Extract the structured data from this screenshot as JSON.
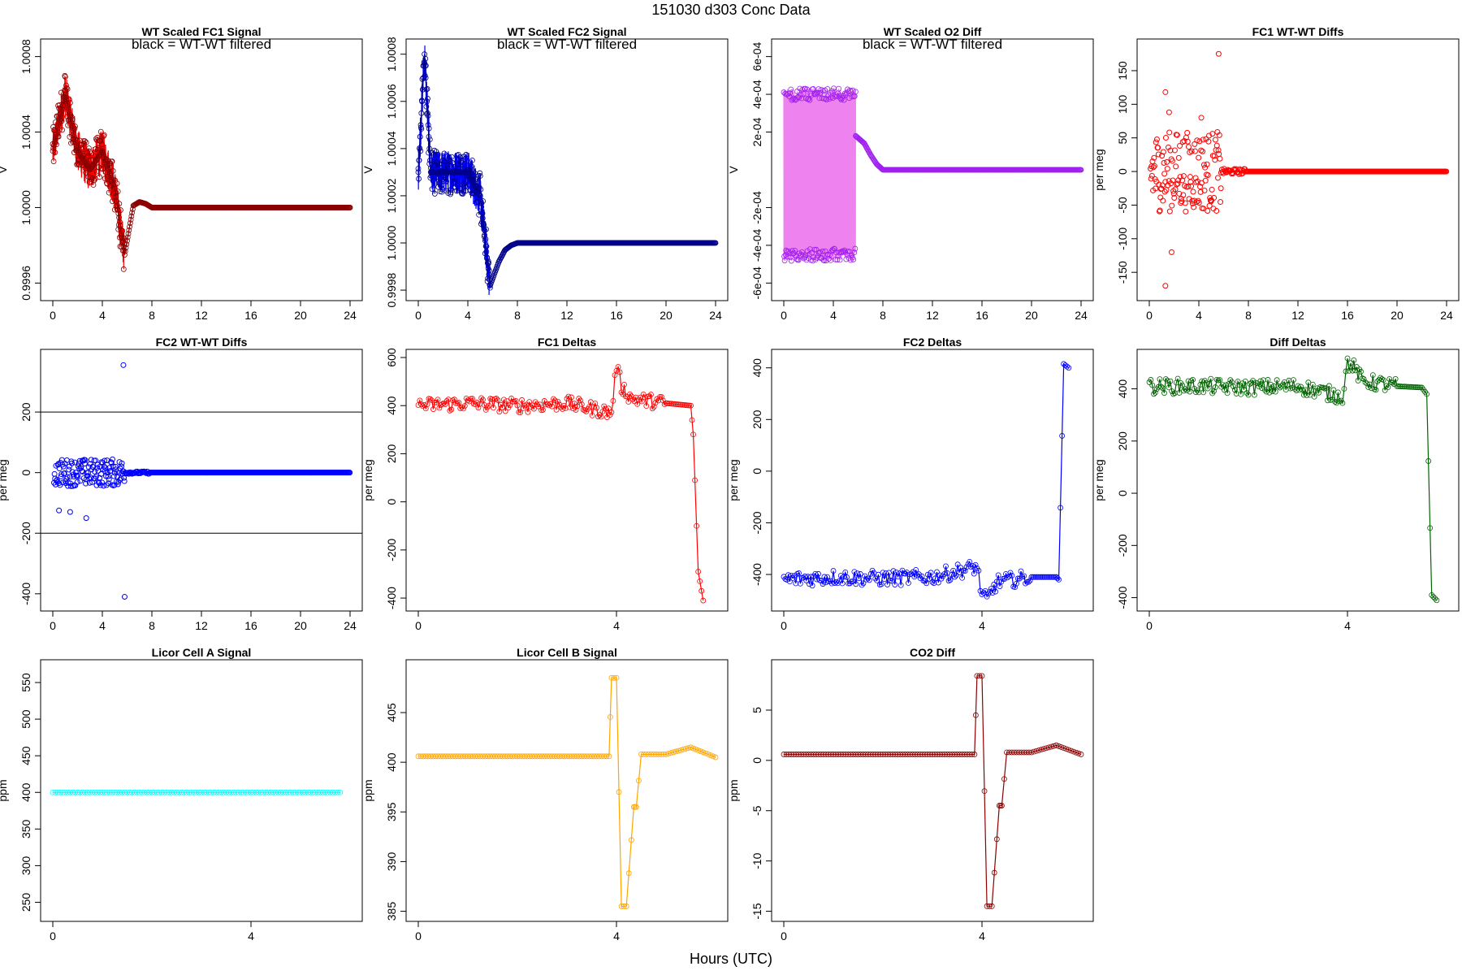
{
  "page": {
    "title": "151030    d303    Conc Data",
    "xlabel": "Hours (UTC)"
  },
  "chart_data": [
    {
      "id": "fc1-signal",
      "type": "line",
      "title": "WT Scaled FC1 Signal",
      "annotation": "black = WT-WT filtered",
      "ylabel": "V",
      "xlim": [
        0,
        24
      ],
      "ylim": [
        0.99955,
        1.00085
      ],
      "xticks": [
        0,
        4,
        8,
        12,
        16,
        20,
        24
      ],
      "yticks": [
        0.9996,
        1.0,
        1.0004,
        1.0008
      ],
      "ytick_labels": [
        "0.9996",
        "1.0000",
        "1.0004",
        "1.0008"
      ],
      "color": "#ff0000",
      "series": [
        {
          "color": "#8b0000",
          "x": [
            0,
            1,
            2,
            3,
            4,
            5,
            5.8,
            6.5,
            7,
            7.5,
            8,
            12,
            16,
            20,
            24
          ],
          "y": [
            1.0003,
            1.0006,
            1.0003,
            1.0002,
            1.0003,
            1.0001,
            0.99975,
            1.00001,
            1.00003,
            1.00002,
            1.0,
            1.0,
            1.0,
            1.0,
            1.0
          ]
        }
      ]
    },
    {
      "id": "fc2-signal",
      "type": "line",
      "title": "WT Scaled FC2 Signal",
      "annotation": "black = WT-WT filtered",
      "ylabel": "V",
      "xlim": [
        0,
        24
      ],
      "ylim": [
        0.99979,
        1.00083
      ],
      "xticks": [
        0,
        4,
        8,
        12,
        16,
        20,
        24
      ],
      "yticks": [
        0.9998,
        1.0,
        1.0002,
        1.0004,
        1.0006,
        1.0008
      ],
      "ytick_labels": [
        "0.9998",
        "1.0000",
        "1.0002",
        "1.0004",
        "1.0006",
        "1.0008"
      ],
      "color": "#0000ff",
      "series": [
        {
          "color": "#00008b",
          "x": [
            0,
            0.5,
            1,
            2,
            3,
            4,
            5,
            5.8,
            6.5,
            7,
            7.5,
            8,
            12,
            16,
            20,
            24
          ],
          "y": [
            1.0003,
            1.0008,
            1.0003,
            1.0003,
            1.0003,
            1.0003,
            1.0002,
            0.99982,
            0.99992,
            0.99997,
            0.99999,
            1.0,
            1.0,
            1.0,
            1.0,
            1.0
          ]
        }
      ]
    },
    {
      "id": "o2-diff",
      "type": "line",
      "title": "WT Scaled O2 Diff",
      "annotation": "black = WT-WT filtered",
      "ylabel": "V",
      "xlim": [
        0,
        24
      ],
      "ylim": [
        -0.00065,
        0.00065
      ],
      "xticks": [
        0,
        4,
        8,
        12,
        16,
        20,
        24
      ],
      "yticks": [
        -0.0006,
        -0.0004,
        -0.0002,
        0.0002,
        0.0004,
        0.0006
      ],
      "ytick_labels": [
        "-6e-04",
        "-4e-04",
        "-2e-04",
        "2e-04",
        "4e-04",
        "6e-04"
      ],
      "color": "#ee82ee",
      "series": [
        {
          "color": "#a020f0",
          "x": [
            5.8,
            6.5,
            7,
            7.5,
            8,
            12,
            16,
            20,
            24
          ],
          "y": [
            0.00018,
            0.00014,
            8e-05,
            3e-05,
            0.0,
            0.0,
            0.0,
            0.0,
            0.0
          ]
        }
      ]
    },
    {
      "id": "fc1-wtwt",
      "type": "scatter",
      "title": "FC1 WT-WT Diffs",
      "ylabel": "per meg",
      "xlim": [
        0,
        24
      ],
      "ylim": [
        -180,
        185
      ],
      "xticks": [
        0,
        4,
        8,
        12,
        16,
        20,
        24
      ],
      "yticks": [
        -150,
        -100,
        -50,
        0,
        50,
        100,
        150
      ],
      "ytick_labels": [
        "-150",
        "-100",
        "-50",
        "0",
        "50",
        "100",
        "150"
      ],
      "color": "#ff0000",
      "series": [
        {
          "color": "#ff0000",
          "x": [
            1.3,
            5.6,
            1.3,
            1.8,
            1.6,
            4.2
          ],
          "y": [
            -170,
            175,
            118,
            -120,
            88,
            80
          ]
        }
      ]
    },
    {
      "id": "fc2-wtwt",
      "type": "scatter",
      "title": "FC2 WT-WT Diffs",
      "ylabel": "per meg",
      "xlim": [
        0,
        24
      ],
      "ylim": [
        -430,
        380
      ],
      "xticks": [
        0,
        4,
        8,
        12,
        16,
        20,
        24
      ],
      "yticks": [
        -400,
        -200,
        0,
        200
      ],
      "ytick_labels": [
        "-400",
        "-200",
        "0",
        "200"
      ],
      "hlines": [
        200,
        -200
      ],
      "color": "#0000ff",
      "series": [
        {
          "color": "#0000ff",
          "x": [
            5.7,
            5.8,
            2.7,
            0.5,
            1.4
          ],
          "y": [
            355,
            -410,
            -150,
            -125,
            -130
          ]
        }
      ]
    },
    {
      "id": "fc1-deltas",
      "type": "line",
      "title": "FC1 Deltas",
      "ylabel": "per meg",
      "xlim": [
        0,
        6.0
      ],
      "ylim": [
        -420,
        600
      ],
      "xticks": [
        0,
        4
      ],
      "yticks": [
        -400,
        -200,
        0,
        200,
        400,
        600
      ],
      "ytick_labels": [
        "-400",
        "-200",
        "0",
        "200",
        "400",
        "600"
      ],
      "color": "#ff0000",
      "series": [
        {
          "color": "#ff0000",
          "x": [
            0,
            1,
            2,
            3,
            3.9,
            4.0,
            4.1,
            4.3,
            5,
            5.5,
            5.55,
            5.65,
            5.75
          ],
          "y": [
            400,
            410,
            400,
            410,
            370,
            570,
            480,
            430,
            410,
            400,
            280,
            -290,
            -410
          ]
        }
      ]
    },
    {
      "id": "fc2-deltas",
      "type": "line",
      "title": "FC2 Deltas",
      "ylabel": "per meg",
      "xlim": [
        0,
        6.0
      ],
      "ylim": [
        -510,
        440
      ],
      "xticks": [
        0,
        4
      ],
      "yticks": [
        -400,
        -200,
        0,
        200,
        400
      ],
      "ytick_labels": [
        "-400",
        "-200",
        "0",
        "200",
        "400"
      ],
      "color": "#0000ff",
      "series": [
        {
          "color": "#0000ff",
          "x": [
            0,
            1,
            2,
            3,
            3.9,
            4.0,
            4.1,
            4.3,
            5,
            5.5,
            5.55,
            5.65,
            5.75
          ],
          "y": [
            -420,
            -410,
            -415,
            -410,
            -370,
            -480,
            -500,
            -430,
            -410,
            -410,
            -420,
            415,
            400
          ]
        }
      ]
    },
    {
      "id": "diff-deltas",
      "type": "line",
      "title": "Diff Deltas",
      "ylabel": "per meg",
      "xlim": [
        0,
        6.0
      ],
      "ylim": [
        -420,
        520
      ],
      "xticks": [
        0,
        4
      ],
      "yticks": [
        -400,
        -200,
        0,
        200,
        400
      ],
      "ytick_labels": [
        "-400",
        "-200",
        "0",
        "200",
        "400"
      ],
      "color": "#006400",
      "series": [
        {
          "color": "#006400",
          "x": [
            0,
            1,
            2,
            3,
            3.9,
            4.0,
            4.1,
            4.3,
            5,
            5.5,
            5.6,
            5.7,
            5.8
          ],
          "y": [
            410,
            410,
            405,
            410,
            370,
            500,
            490,
            430,
            410,
            405,
            380,
            -390,
            -410
          ]
        }
      ]
    },
    {
      "id": "licor-a",
      "type": "line",
      "title": "Licor Cell A Signal",
      "ylabel": "ppm",
      "xlim": [
        0,
        6.0
      ],
      "ylim": [
        235,
        570
      ],
      "xticks": [
        0,
        4
      ],
      "yticks": [
        250,
        300,
        350,
        400,
        450,
        500,
        550
      ],
      "ytick_labels": [
        "250",
        "300",
        "350",
        "400",
        "450",
        "500",
        "550"
      ],
      "color": "#00ffff",
      "series": [
        {
          "color": "#00ffff",
          "x": [
            0,
            5.8
          ],
          "y": [
            400,
            400
          ]
        }
      ]
    },
    {
      "id": "licor-b",
      "type": "line",
      "title": "Licor Cell B Signal",
      "ylabel": "ppm",
      "xlim": [
        0,
        6.0
      ],
      "ylim": [
        384.8,
        409.5
      ],
      "xticks": [
        0,
        4
      ],
      "yticks": [
        385,
        390,
        395,
        400,
        405
      ],
      "ytick_labels": [
        "385",
        "390",
        "395",
        "400",
        "405"
      ],
      "color": "#ffa500",
      "series": [
        {
          "color": "#ffa500",
          "x": [
            0,
            3.85,
            3.9,
            4.0,
            4.1,
            4.2,
            4.35,
            4.4,
            4.5,
            5.0,
            5.5,
            6.0
          ],
          "y": [
            400.6,
            400.6,
            408.5,
            408.5,
            385.5,
            385.5,
            395.5,
            395.5,
            400.8,
            400.8,
            401.5,
            400.5
          ]
        }
      ]
    },
    {
      "id": "co2-diff",
      "type": "line",
      "title": "CO2 Diff",
      "ylabel": "ppm",
      "xlim": [
        0,
        6.0
      ],
      "ylim": [
        -15.2,
        9.2
      ],
      "xticks": [
        0,
        4
      ],
      "yticks": [
        -15,
        -10,
        -5,
        0,
        5
      ],
      "ytick_labels": [
        "-15",
        "-10",
        "-5",
        "0",
        "5"
      ],
      "color": "#8b0000",
      "series": [
        {
          "color": "#8b0000",
          "x": [
            0,
            3.85,
            3.9,
            4.0,
            4.1,
            4.2,
            4.35,
            4.4,
            4.5,
            5.0,
            5.5,
            6.0
          ],
          "y": [
            0.6,
            0.6,
            8.4,
            8.4,
            -14.5,
            -14.5,
            -4.5,
            -4.5,
            0.8,
            0.8,
            1.5,
            0.6
          ]
        }
      ]
    }
  ]
}
